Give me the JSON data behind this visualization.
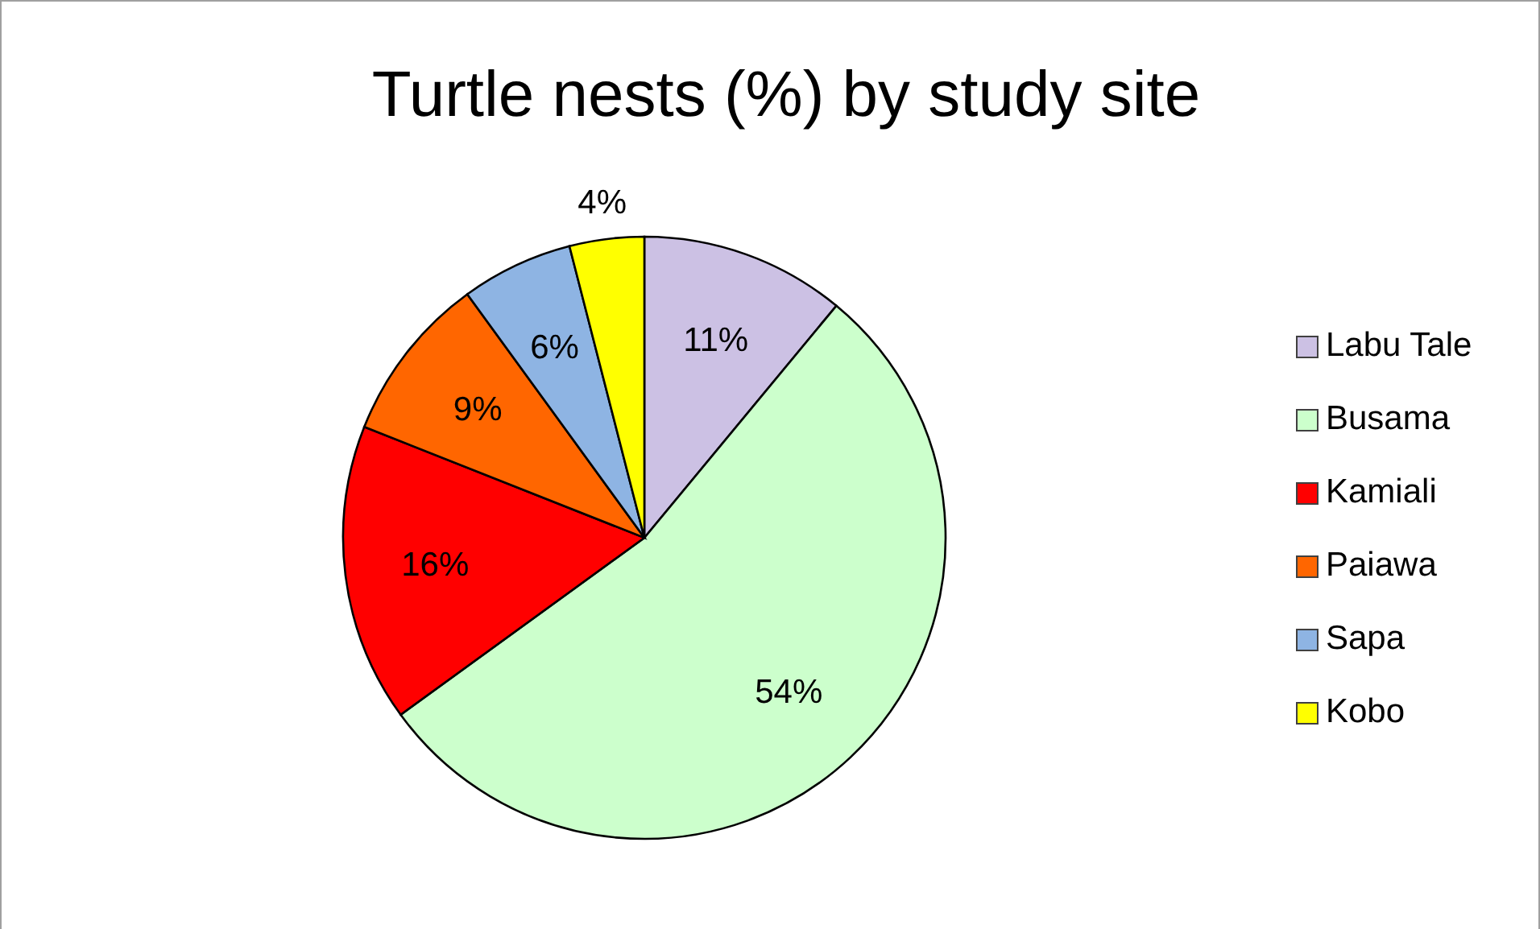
{
  "chart_data": {
    "type": "pie",
    "title": "Turtle nests (%) by study site",
    "categories": [
      "Labu Tale",
      "Busama",
      "Kamiali",
      "Paiawa",
      "Sapa",
      "Kobo"
    ],
    "values": [
      11,
      54,
      16,
      9,
      6,
      4
    ],
    "value_labels": [
      "11%",
      "54%",
      "16%",
      "9%",
      "6%",
      "4%"
    ],
    "colors": [
      "#ccc1e4",
      "#ccffcc",
      "#ff0000",
      "#ff6600",
      "#8eb4e3",
      "#ffff00"
    ],
    "legend": "right"
  }
}
